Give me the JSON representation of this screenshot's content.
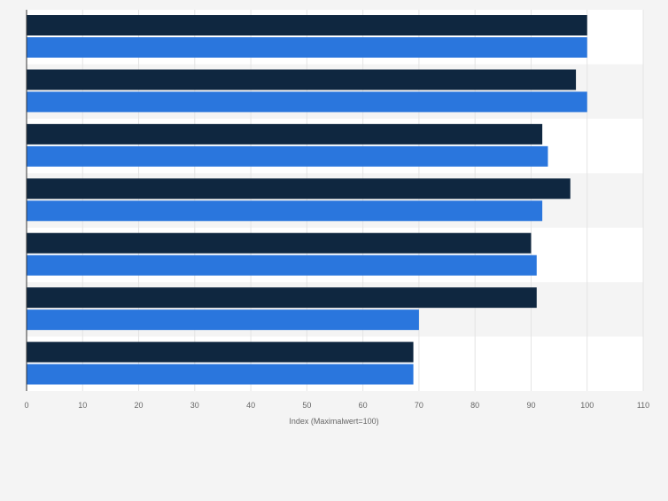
{
  "chart_data": {
    "type": "bar",
    "orientation": "horizontal",
    "categories": [
      "",
      "",
      "",
      "",
      "",
      "",
      ""
    ],
    "series": [
      {
        "color": "#0f2740",
        "values": [
          100,
          98,
          92,
          97,
          90,
          91,
          69
        ]
      },
      {
        "color": "#2a76dd",
        "values": [
          100,
          100,
          93,
          92,
          91,
          70,
          69
        ]
      }
    ],
    "xlabel": "Index (Maximalwert=100)",
    "ylabel": "",
    "xlim": [
      0,
      110
    ],
    "xticks": [
      0,
      10,
      20,
      30,
      40,
      50,
      60,
      70,
      80,
      90,
      100,
      110
    ],
    "xtick_labels": [
      "0",
      "10",
      "20",
      "30",
      "40",
      "50",
      "60",
      "70",
      "80",
      "90",
      "100",
      "110"
    ],
    "grid": true,
    "legend": "none"
  }
}
